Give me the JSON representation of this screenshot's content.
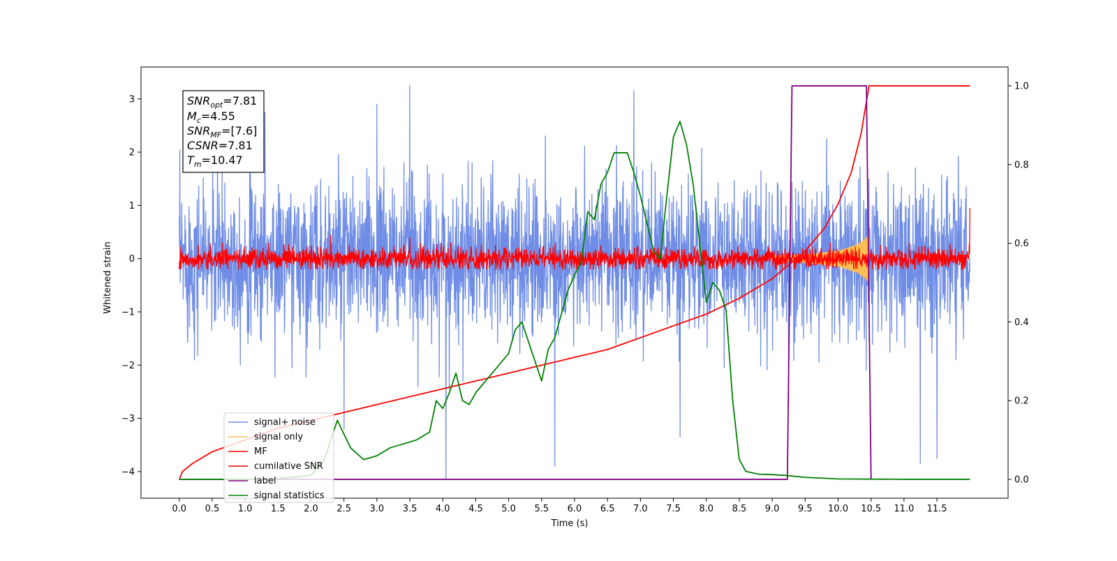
{
  "chart_data": {
    "type": "line",
    "xlabel": "Time (s)",
    "ylabel": "Whitened strain",
    "xlim": [
      -0.58,
      12.58
    ],
    "ylim": [
      -4.5,
      3.6
    ],
    "y2lim": [
      -0.048,
      1.048
    ],
    "x_ticks": [
      "0.0",
      "0.5",
      "1.0",
      "1.5",
      "2.0",
      "2.5",
      "3.0",
      "3.5",
      "4.0",
      "4.5",
      "5.0",
      "5.5",
      "6.0",
      "6.5",
      "7.0",
      "7.5",
      "8.0",
      "8.5",
      "9.0",
      "9.5",
      "10.0",
      "10.5",
      "11.0",
      "11.5"
    ],
    "y_ticks": [
      "3",
      "2",
      "1",
      "0",
      "−1",
      "−2",
      "−3",
      "−4"
    ],
    "y2_ticks": [
      "1.0",
      "0.8",
      "0.6",
      "0.4",
      "0.2",
      "0.0"
    ],
    "grid": false,
    "legend_position": "lower-left",
    "annotation": {
      "snr_opt": {
        "label": "SNR",
        "sub": "opt",
        "value": "=7.81"
      },
      "mc": {
        "label": "M",
        "sub": "c",
        "value": "=4.55"
      },
      "snr_mf": {
        "label": "SNR",
        "sub": "MF",
        "value": "=[7.6]"
      },
      "csnr": {
        "label": "CSNR",
        "sub": "",
        "value": "=7.81"
      },
      "tm": {
        "label": "T",
        "sub": "m",
        "value": "=10.47"
      }
    },
    "legend": [
      {
        "name": "signal+ noise",
        "color": "#6f8de6"
      },
      {
        "name": "signal only",
        "color": "#ffbf50"
      },
      {
        "name": "MF",
        "color": "#ff0000"
      },
      {
        "name": "cumilative SNR",
        "color": "#ff0000"
      },
      {
        "name": "label",
        "color": "#800080"
      },
      {
        "name": "signal statistics",
        "color": "#008000"
      }
    ],
    "series": [
      {
        "name": "signal+ noise",
        "axis": "left",
        "color": "#6f8de6",
        "x_range": [
          0.0,
          12.0
        ],
        "envelope_typical": [
          -1.4,
          1.5
        ],
        "peaks": [
          [
            3.5,
            3.25
          ],
          [
            6.9,
            3.15
          ],
          [
            1.3,
            2.75
          ],
          [
            3.0,
            2.9
          ],
          [
            4.05,
            -4.15
          ],
          [
            5.7,
            -3.9
          ],
          [
            2.5,
            -3.2
          ],
          [
            7.6,
            -3.35
          ],
          [
            11.5,
            -3.75
          ],
          [
            11.25,
            -3.85
          ],
          [
            9.25,
            -2.75
          ]
        ]
      },
      {
        "name": "signal only",
        "axis": "left",
        "color": "#ffbf50",
        "x": [
          9.0,
          9.5,
          10.0,
          10.3,
          10.47
        ],
        "envelope": [
          0.05,
          0.08,
          0.15,
          0.28,
          0.45
        ]
      },
      {
        "name": "MF",
        "axis": "left",
        "color": "#ff0000",
        "x_range": [
          0.0,
          12.0
        ],
        "envelope_typical": [
          -0.15,
          0.25
        ],
        "peaks": [
          [
            0.0,
            1.0
          ],
          [
            0.0,
            -0.2
          ],
          [
            12.0,
            0.95
          ],
          [
            2.3,
            0.45
          ],
          [
            3.5,
            0.4
          ]
        ]
      },
      {
        "name": "cumilative SNR",
        "axis": "right",
        "color": "#ff0000",
        "x": [
          0.0,
          0.05,
          0.2,
          0.5,
          1.0,
          1.5,
          2.0,
          2.5,
          3.0,
          3.5,
          4.0,
          4.5,
          5.0,
          5.5,
          6.0,
          6.5,
          7.0,
          7.5,
          8.0,
          8.5,
          9.0,
          9.5,
          9.8,
          10.0,
          10.2,
          10.35,
          10.47,
          11.0,
          12.0
        ],
        "values": [
          0.0,
          0.02,
          0.04,
          0.07,
          0.1,
          0.13,
          0.15,
          0.17,
          0.19,
          0.21,
          0.23,
          0.25,
          0.27,
          0.29,
          0.31,
          0.33,
          0.36,
          0.39,
          0.42,
          0.46,
          0.51,
          0.58,
          0.64,
          0.7,
          0.78,
          0.88,
          1.0,
          1.0,
          1.0
        ]
      },
      {
        "name": "label",
        "axis": "right",
        "color": "#800080",
        "x": [
          0.0,
          9.23,
          9.3,
          10.43,
          10.5
        ],
        "values": [
          0.0,
          0.0,
          1.0,
          1.0,
          0.0
        ]
      },
      {
        "name": "signal statistics",
        "axis": "right",
        "color": "#008000",
        "x": [
          0.0,
          1.0,
          1.5,
          2.0,
          2.2,
          2.4,
          2.6,
          2.8,
          3.0,
          3.2,
          3.4,
          3.6,
          3.8,
          3.9,
          4.0,
          4.1,
          4.2,
          4.3,
          4.4,
          4.5,
          4.6,
          4.8,
          5.0,
          5.1,
          5.2,
          5.3,
          5.4,
          5.5,
          5.6,
          5.7,
          5.8,
          5.9,
          6.0,
          6.1,
          6.2,
          6.3,
          6.4,
          6.5,
          6.6,
          6.7,
          6.8,
          6.9,
          7.0,
          7.1,
          7.2,
          7.3,
          7.4,
          7.5,
          7.6,
          7.7,
          7.8,
          7.9,
          8.0,
          8.1,
          8.2,
          8.3,
          8.4,
          8.5,
          8.6,
          8.8,
          9.0,
          9.2,
          9.5,
          10.0,
          11.0,
          12.0
        ],
        "values": [
          0.0,
          0.0,
          0.002,
          0.01,
          0.05,
          0.15,
          0.08,
          0.05,
          0.06,
          0.08,
          0.09,
          0.1,
          0.12,
          0.2,
          0.18,
          0.22,
          0.27,
          0.2,
          0.19,
          0.22,
          0.24,
          0.28,
          0.32,
          0.38,
          0.4,
          0.35,
          0.3,
          0.25,
          0.33,
          0.36,
          0.42,
          0.48,
          0.52,
          0.55,
          0.68,
          0.66,
          0.75,
          0.78,
          0.83,
          0.83,
          0.83,
          0.78,
          0.72,
          0.65,
          0.58,
          0.56,
          0.72,
          0.87,
          0.91,
          0.85,
          0.75,
          0.6,
          0.45,
          0.5,
          0.48,
          0.43,
          0.2,
          0.05,
          0.02,
          0.013,
          0.012,
          0.01,
          0.005,
          0.001,
          0.0,
          0.0
        ]
      }
    ]
  }
}
